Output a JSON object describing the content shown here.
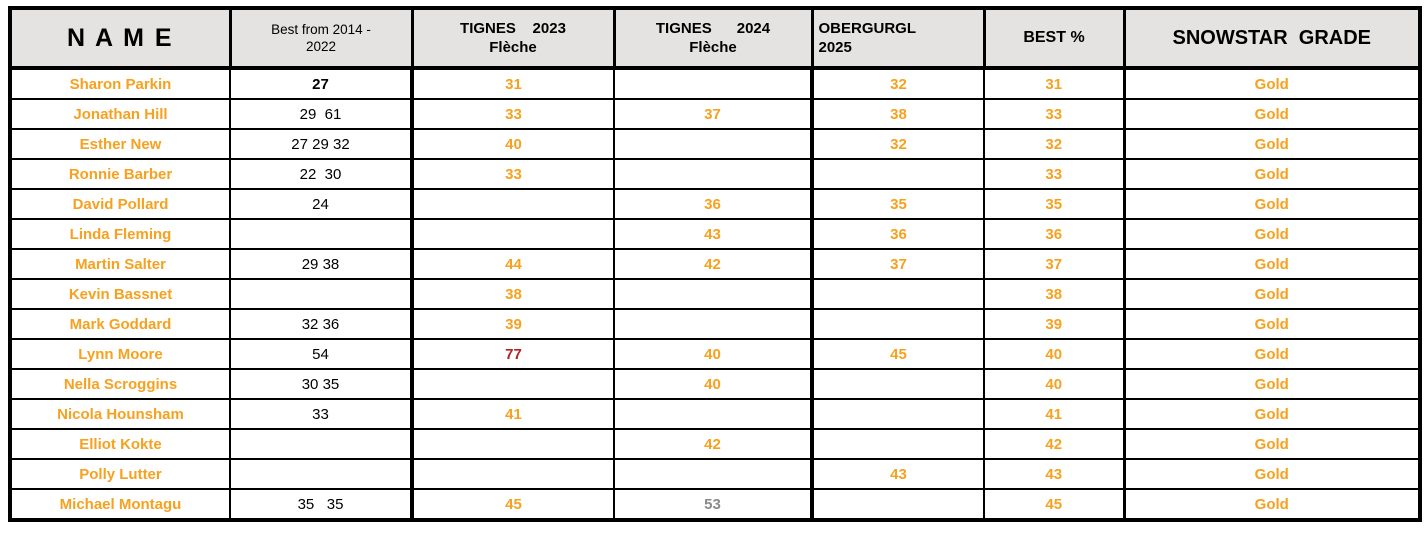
{
  "colors": {
    "accent_orange": "#F7A11E",
    "alert_red": "#B32025",
    "muted_gray": "#8A8A8A",
    "header_bg": "#E4E3E2",
    "border_black": "#000000"
  },
  "table": {
    "header": {
      "name": {
        "line1": "N A M E"
      },
      "best_from": {
        "line1": "Best from 2014 -",
        "line2": "2022"
      },
      "tignes_2023": {
        "line1": "TIGNES    2023",
        "line2": "Flèche"
      },
      "tignes_2024": {
        "line1": "TIGNES      2024",
        "line2": "Flèche"
      },
      "obergurgl_2025": {
        "line1": "OBERGURGL",
        "line2": "2025"
      },
      "best_pct": {
        "line1": "BEST %"
      },
      "snowstar_grade": {
        "line1": "SNOWSTAR  GRADE"
      }
    },
    "rows": [
      {
        "name": "Sharon Parkin",
        "best_from": "27",
        "best_from_style": "bold-black",
        "tignes_2023": "31",
        "tignes_2024": "",
        "obergurgl_2025": "32",
        "best_pct": "31",
        "snowstar_grade": "Gold"
      },
      {
        "name": "Jonathan Hill",
        "best_from": "29  61",
        "tignes_2023": "33",
        "tignes_2024": "37",
        "obergurgl_2025": "38",
        "best_pct": "33",
        "snowstar_grade": "Gold"
      },
      {
        "name": "Esther New",
        "best_from": "27 29 32",
        "tignes_2023": "40",
        "tignes_2024": "",
        "obergurgl_2025": "32",
        "best_pct": "32",
        "snowstar_grade": "Gold"
      },
      {
        "name": "Ronnie Barber",
        "best_from": "22  30",
        "tignes_2023": "33",
        "tignes_2024": "",
        "obergurgl_2025": "",
        "best_pct": "33",
        "snowstar_grade": "Gold"
      },
      {
        "name": "David Pollard",
        "best_from": "24",
        "tignes_2023": "",
        "tignes_2024": "36",
        "obergurgl_2025": "35",
        "best_pct": "35",
        "snowstar_grade": "Gold"
      },
      {
        "name": "Linda Fleming",
        "best_from": "",
        "tignes_2023": "",
        "tignes_2024": "43",
        "obergurgl_2025": "36",
        "best_pct": "36",
        "snowstar_grade": "Gold"
      },
      {
        "name": "Martin Salter",
        "best_from": "29 38",
        "tignes_2023": "44",
        "tignes_2024": "42",
        "obergurgl_2025": "37",
        "best_pct": "37",
        "snowstar_grade": "Gold"
      },
      {
        "name": "Kevin Bassnet",
        "best_from": "",
        "tignes_2023": "38",
        "tignes_2024": "",
        "obergurgl_2025": "",
        "best_pct": "38",
        "snowstar_grade": "Gold"
      },
      {
        "name": "Mark Goddard",
        "best_from": "32 36",
        "tignes_2023": "39",
        "tignes_2024": "",
        "obergurgl_2025": "",
        "best_pct": "39",
        "snowstar_grade": "Gold"
      },
      {
        "name": "Lynn Moore",
        "best_from": "54",
        "tignes_2023": "77",
        "tignes_2023_style": "red",
        "tignes_2024": "40",
        "obergurgl_2025": "45",
        "best_pct": "40",
        "snowstar_grade": "Gold"
      },
      {
        "name": "Nella Scroggins",
        "best_from": "30 35",
        "tignes_2023": "",
        "tignes_2024": "40",
        "obergurgl_2025": "",
        "best_pct": "40",
        "snowstar_grade": "Gold"
      },
      {
        "name": "Nicola Hounsham",
        "best_from": "33",
        "tignes_2023": "41",
        "tignes_2024": "",
        "obergurgl_2025": "",
        "best_pct": "41",
        "snowstar_grade": "Gold"
      },
      {
        "name": "Elliot Kokte",
        "best_from": "",
        "tignes_2023": "",
        "tignes_2024": "42",
        "obergurgl_2025": "",
        "best_pct": "42",
        "snowstar_grade": "Gold"
      },
      {
        "name": "Polly Lutter",
        "best_from": "",
        "tignes_2023": "",
        "tignes_2024": "",
        "obergurgl_2025": "43",
        "best_pct": "43",
        "snowstar_grade": "Gold"
      },
      {
        "name": "Michael Montagu",
        "best_from": "35   35",
        "tignes_2023": "45",
        "tignes_2024": "53",
        "tignes_2024_style": "gray",
        "obergurgl_2025": "",
        "best_pct": "45",
        "snowstar_grade": "Gold"
      }
    ]
  }
}
